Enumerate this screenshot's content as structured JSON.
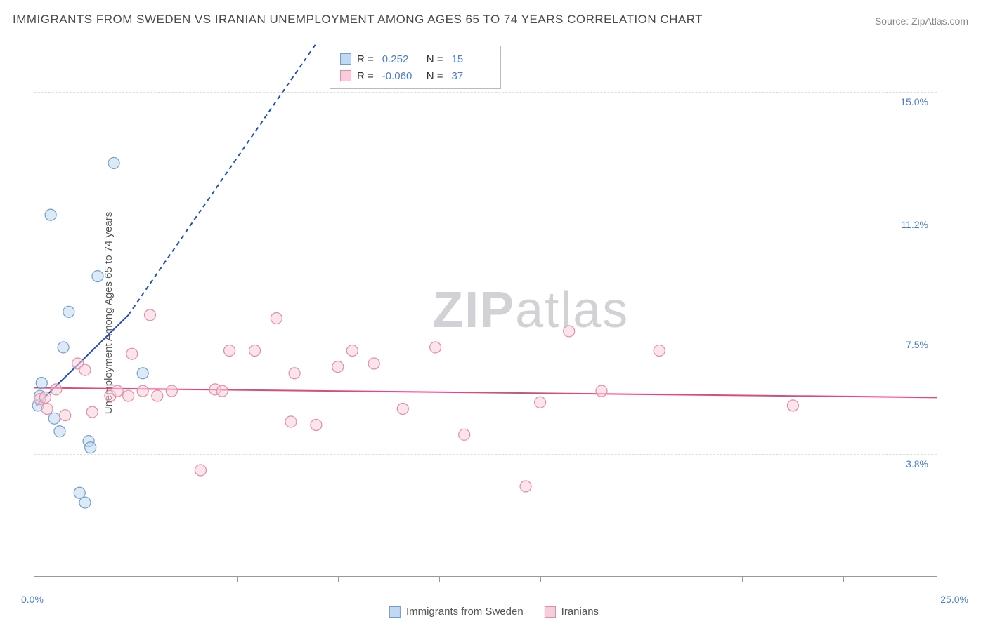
{
  "title": "IMMIGRANTS FROM SWEDEN VS IRANIAN UNEMPLOYMENT AMONG AGES 65 TO 74 YEARS CORRELATION CHART",
  "source": "Source: ZipAtlas.com",
  "ylabel": "Unemployment Among Ages 65 to 74 years",
  "watermark_bold": "ZIP",
  "watermark_light": "atlas",
  "chart": {
    "type": "scatter",
    "xlim": [
      0,
      25
    ],
    "ylim": [
      0,
      16.5
    ],
    "x_origin_label": "0.0%",
    "x_max_label": "25.0%",
    "ytick_labels": [
      "3.8%",
      "7.5%",
      "11.2%",
      "15.0%"
    ],
    "ytick_values": [
      3.8,
      7.5,
      11.2,
      15.0
    ],
    "xtick_positions": [
      2.8,
      5.6,
      8.4,
      11.2,
      14.0,
      16.8,
      19.6,
      22.4
    ],
    "grid_color": "#dddddd",
    "axis_color": "#999999",
    "background_color": "#ffffff",
    "marker_radius": 8,
    "series": [
      {
        "name": "Immigrants from Sweden",
        "short": "sweden",
        "fill": "#c3d7ef",
        "stroke": "#6d9fd6",
        "fill_opacity": 0.55,
        "R": "0.252",
        "N": "15",
        "trend": {
          "solid": {
            "x1": 0.05,
            "y1": 5.3,
            "x2": 2.6,
            "y2": 8.1
          },
          "dashed": {
            "x1": 2.6,
            "y1": 8.1,
            "x2": 7.8,
            "y2": 16.5
          },
          "color": "#2050b0",
          "width": 2
        },
        "points": [
          [
            0.1,
            5.3
          ],
          [
            0.15,
            5.6
          ],
          [
            0.2,
            6.0
          ],
          [
            0.45,
            11.2
          ],
          [
            0.55,
            4.9
          ],
          [
            0.7,
            4.5
          ],
          [
            0.8,
            7.1
          ],
          [
            0.95,
            8.2
          ],
          [
            1.25,
            2.6
          ],
          [
            1.4,
            2.3
          ],
          [
            1.5,
            4.2
          ],
          [
            1.55,
            4.0
          ],
          [
            1.75,
            9.3
          ],
          [
            2.2,
            12.8
          ],
          [
            3.0,
            6.3
          ]
        ]
      },
      {
        "name": "Iranians",
        "short": "iranians",
        "fill": "#f7cdd9",
        "stroke": "#e58ca5",
        "fill_opacity": 0.55,
        "R": "-0.060",
        "N": "37",
        "trend": {
          "solid": {
            "x1": 0.0,
            "y1": 5.85,
            "x2": 25.0,
            "y2": 5.55
          },
          "color": "#e04880",
          "width": 2
        },
        "points": [
          [
            0.15,
            5.5
          ],
          [
            0.3,
            5.55
          ],
          [
            0.35,
            5.2
          ],
          [
            0.6,
            5.8
          ],
          [
            0.85,
            5.0
          ],
          [
            1.2,
            6.6
          ],
          [
            1.4,
            6.4
          ],
          [
            1.6,
            5.1
          ],
          [
            2.1,
            5.6
          ],
          [
            2.3,
            5.75
          ],
          [
            2.6,
            5.6
          ],
          [
            2.7,
            6.9
          ],
          [
            3.0,
            5.75
          ],
          [
            3.2,
            8.1
          ],
          [
            3.4,
            5.6
          ],
          [
            3.8,
            5.75
          ],
          [
            4.6,
            3.3
          ],
          [
            5.0,
            5.8
          ],
          [
            5.2,
            5.75
          ],
          [
            5.4,
            7.0
          ],
          [
            6.1,
            7.0
          ],
          [
            6.7,
            8.0
          ],
          [
            7.1,
            4.8
          ],
          [
            7.2,
            6.3
          ],
          [
            7.8,
            4.7
          ],
          [
            8.4,
            6.5
          ],
          [
            8.8,
            7.0
          ],
          [
            9.4,
            6.6
          ],
          [
            10.2,
            5.2
          ],
          [
            11.1,
            7.1
          ],
          [
            11.9,
            4.4
          ],
          [
            13.6,
            2.8
          ],
          [
            14.0,
            5.4
          ],
          [
            14.8,
            7.6
          ],
          [
            15.7,
            5.75
          ],
          [
            17.3,
            7.0
          ],
          [
            21.0,
            5.3
          ]
        ]
      }
    ]
  },
  "legend_top": {
    "R_label": "R =",
    "N_label": "N ="
  }
}
